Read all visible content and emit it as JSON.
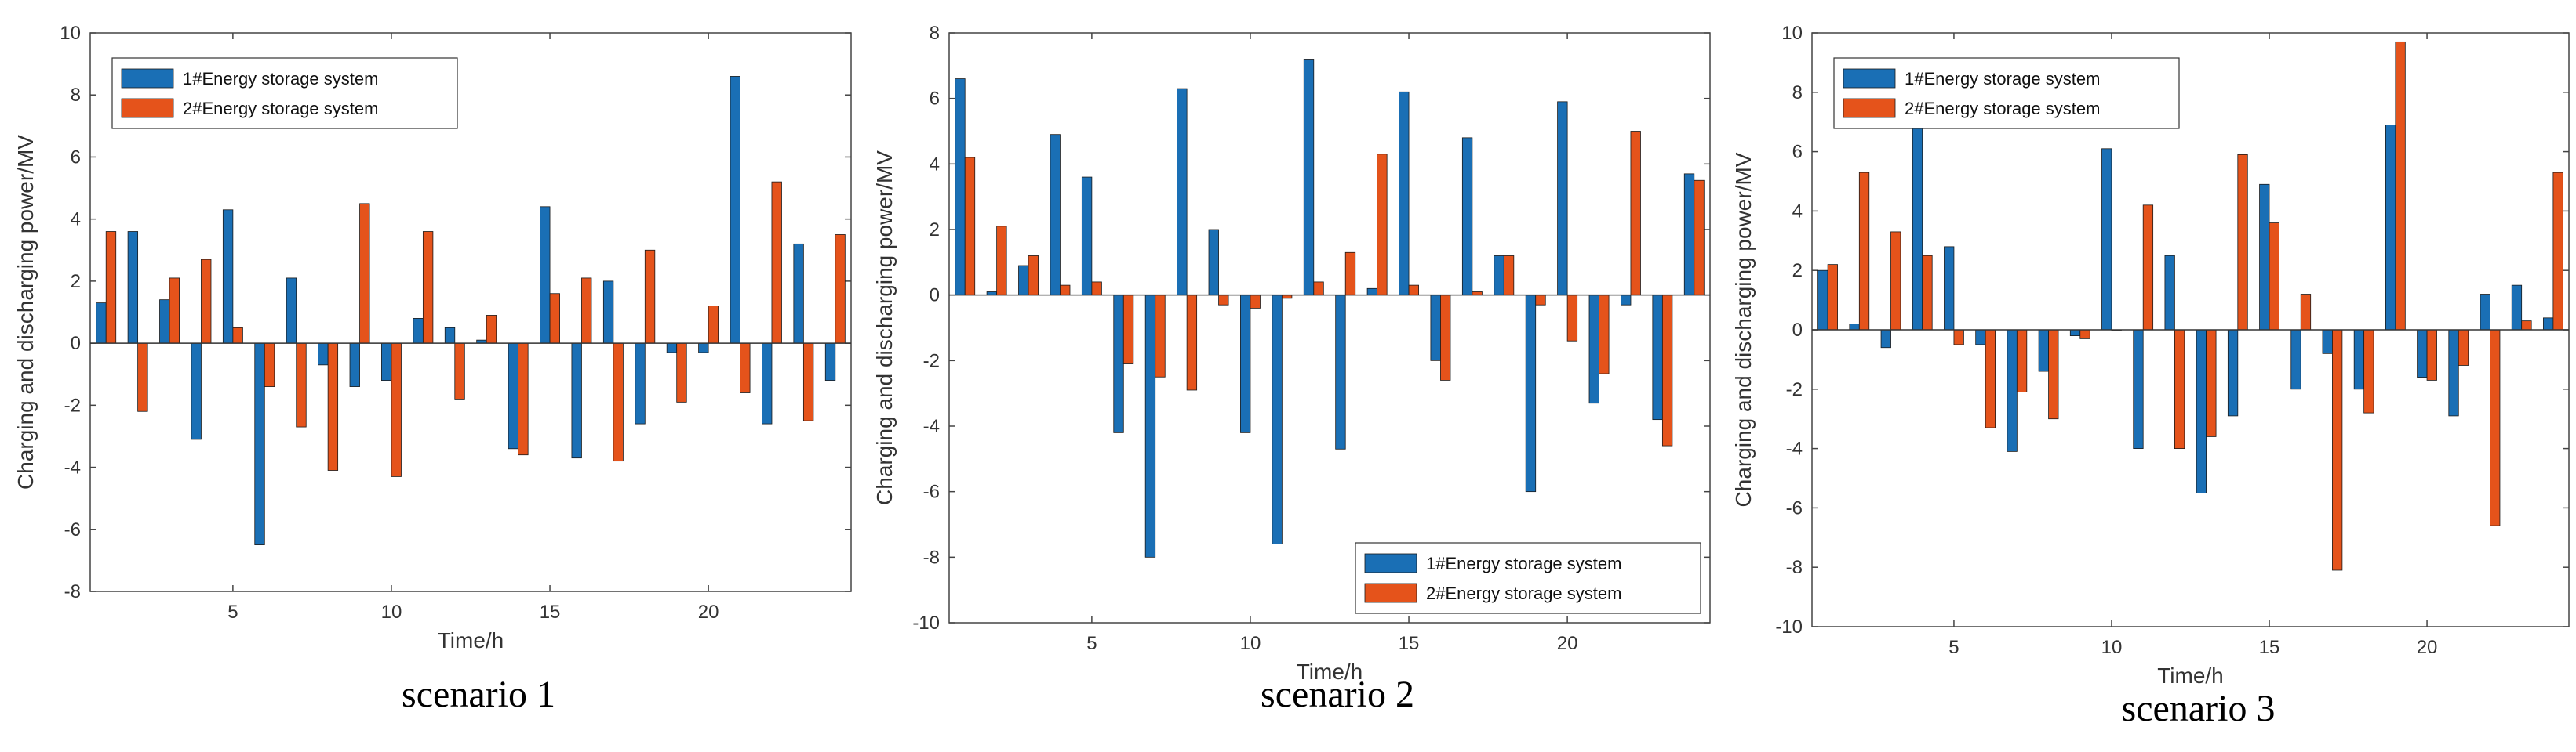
{
  "colors": {
    "series1": "#1a6fb5",
    "series2": "#e5531b"
  },
  "chart_data": [
    {
      "type": "bar",
      "caption": "scenario 1",
      "xlabel": "Time/h",
      "ylabel": "Charging and discharging power/MV",
      "ylim": [
        -8,
        10
      ],
      "yticks": [
        -8,
        -6,
        -4,
        -2,
        0,
        2,
        4,
        6,
        8,
        10
      ],
      "xticks": [
        5,
        10,
        15,
        20
      ],
      "legend_position": "top-left",
      "categories": [
        1,
        2,
        3,
        4,
        5,
        6,
        7,
        8,
        9,
        10,
        11,
        12,
        13,
        14,
        15,
        16,
        17,
        18,
        19,
        20,
        21,
        22,
        23,
        24
      ],
      "series": [
        {
          "name": "1#Energy storage system",
          "values": [
            1.3,
            3.6,
            1.4,
            -3.1,
            4.3,
            -6.5,
            2.1,
            -0.7,
            -1.4,
            -1.2,
            0.8,
            0.5,
            0.1,
            -3.4,
            4.4,
            -3.7,
            2.0,
            -2.6,
            -0.3,
            -0.3,
            8.6,
            -2.6,
            3.2,
            -1.2
          ]
        },
        {
          "name": "2#Energy storage system",
          "values": [
            3.6,
            -2.2,
            2.1,
            2.7,
            0.5,
            -1.4,
            -2.7,
            -4.1,
            4.5,
            -4.3,
            3.6,
            -1.8,
            0.9,
            -3.6,
            1.6,
            2.1,
            -3.8,
            3.0,
            -1.9,
            1.2,
            -1.6,
            5.2,
            -2.5,
            3.5
          ]
        }
      ]
    },
    {
      "type": "bar",
      "caption": "scenario 2",
      "xlabel": "Time/h",
      "ylabel": "Charging and discharging power/MV",
      "ylim": [
        -10,
        8
      ],
      "yticks": [
        -10,
        -8,
        -6,
        -4,
        -2,
        0,
        2,
        4,
        6,
        8
      ],
      "xticks": [
        5,
        10,
        15,
        20
      ],
      "legend_position": "bottom-right",
      "categories": [
        1,
        2,
        3,
        4,
        5,
        6,
        7,
        8,
        9,
        10,
        11,
        12,
        13,
        14,
        15,
        16,
        17,
        18,
        19,
        20,
        21,
        22,
        23,
        24
      ],
      "series": [
        {
          "name": "1#Energy storage system",
          "values": [
            6.6,
            0.1,
            0.9,
            4.9,
            3.6,
            -4.2,
            -8.0,
            6.3,
            2.0,
            -4.2,
            -7.6,
            7.2,
            -4.7,
            0.2,
            6.2,
            -2.0,
            4.8,
            1.2,
            -6.0,
            5.9,
            -3.3,
            -0.3,
            -3.8,
            3.7
          ]
        },
        {
          "name": "2#Energy storage system",
          "values": [
            4.2,
            2.1,
            1.2,
            0.3,
            0.4,
            -2.1,
            -2.5,
            -2.9,
            -0.3,
            -0.4,
            -0.1,
            0.4,
            1.3,
            4.3,
            0.3,
            -2.6,
            0.1,
            1.2,
            -0.3,
            -1.4,
            -2.4,
            5.0,
            -4.6,
            3.5
          ]
        }
      ]
    },
    {
      "type": "bar",
      "caption": "scenario 3",
      "xlabel": "Time/h",
      "ylabel": "Charging and discharging power/MV",
      "ylim": [
        -10,
        10
      ],
      "yticks": [
        -10,
        -8,
        -6,
        -4,
        -2,
        0,
        2,
        4,
        6,
        8,
        10
      ],
      "xticks": [
        5,
        10,
        15,
        20
      ],
      "legend_position": "top-left",
      "categories": [
        1,
        2,
        3,
        4,
        5,
        6,
        7,
        8,
        9,
        10,
        11,
        12,
        13,
        14,
        15,
        16,
        17,
        18,
        19,
        20,
        21,
        22,
        23,
        24
      ],
      "series": [
        {
          "name": "1#Energy storage system",
          "values": [
            2.0,
            0.2,
            -0.6,
            6.8,
            2.8,
            -0.5,
            -4.1,
            -1.4,
            -0.2,
            6.1,
            -4.0,
            2.5,
            -5.5,
            -2.9,
            4.9,
            -2.0,
            -0.8,
            -2.0,
            6.9,
            -1.6,
            -2.9,
            1.2,
            1.5,
            0.4
          ]
        },
        {
          "name": "2#Energy storage system",
          "values": [
            2.2,
            5.3,
            3.3,
            2.5,
            -0.5,
            -3.3,
            -2.1,
            -3.0,
            -0.3,
            0.0,
            4.2,
            -4.0,
            -3.6,
            5.9,
            3.6,
            1.2,
            -8.1,
            -2.8,
            9.7,
            -1.7,
            -1.2,
            -6.6,
            0.3,
            5.3
          ]
        }
      ]
    }
  ]
}
